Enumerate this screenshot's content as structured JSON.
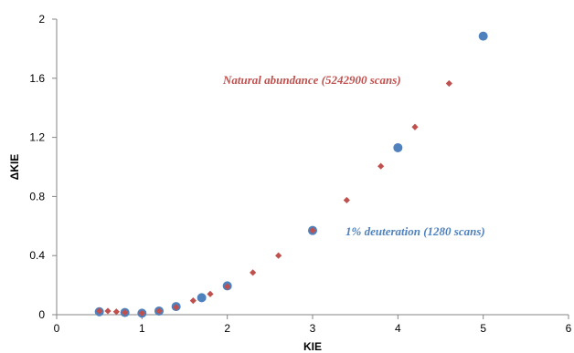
{
  "chart_data": {
    "type": "scatter",
    "title": "",
    "xlabel": "KIE",
    "ylabel": "ΔKIE",
    "xlim": [
      0,
      6
    ],
    "ylim": [
      0,
      2
    ],
    "x_ticks": [
      0,
      1,
      2,
      3,
      4,
      5,
      6
    ],
    "y_ticks": [
      0,
      0.4,
      0.8,
      1.2,
      1.6,
      2
    ],
    "x_tick_labels": [
      "0",
      "1",
      "2",
      "3",
      "4",
      "5",
      "6"
    ],
    "y_tick_labels": [
      "0",
      "0.4",
      "0.8",
      "1.2",
      "1.6",
      "2"
    ],
    "grid": false,
    "series": [
      {
        "name": "1% deuteration (1280 scans)",
        "color": "#4F81BD",
        "marker": "circle",
        "x": [
          0.5,
          0.8,
          1.0,
          1.2,
          1.4,
          1.7,
          2.0,
          3.0,
          4.0,
          5.0
        ],
        "y": [
          0.02,
          0.015,
          0.01,
          0.025,
          0.055,
          0.115,
          0.195,
          0.57,
          1.13,
          1.885
        ]
      },
      {
        "name": "Natural abundance (5242900 scans)",
        "color": "#C0504D",
        "marker": "diamond",
        "x": [
          0.5,
          0.6,
          0.7,
          0.8,
          1.0,
          1.2,
          1.4,
          1.6,
          1.8,
          2.0,
          2.3,
          2.6,
          3.0,
          3.4,
          3.8,
          4.2,
          4.6
        ],
        "y": [
          0.025,
          0.025,
          0.02,
          0.015,
          0.01,
          0.025,
          0.05,
          0.095,
          0.14,
          0.19,
          0.285,
          0.4,
          0.57,
          0.775,
          1.005,
          1.27,
          1.565
        ]
      }
    ],
    "annotations": [
      {
        "series": 1,
        "text": "Natural abundance (5242900 scans)"
      },
      {
        "series": 0,
        "text": "1% deuteration (1280 scans)"
      }
    ]
  }
}
